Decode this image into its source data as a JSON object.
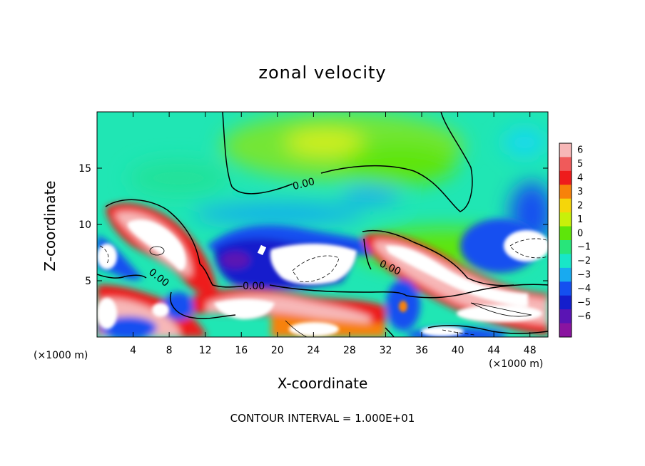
{
  "chart_data": {
    "type": "heatmap",
    "title": "zonal velocity",
    "xlabel": "X-coordinate",
    "ylabel": "Z-coordinate",
    "x_unit_note": "(×1000 m)",
    "x_unit_note_right": "(×1000 m)",
    "footnote": "CONTOUR INTERVAL = 1.000E+01",
    "xlim": [
      0,
      50
    ],
    "ylim": [
      0,
      20
    ],
    "x_ticks": [
      4,
      8,
      12,
      16,
      20,
      24,
      28,
      32,
      36,
      40,
      44,
      48
    ],
    "y_ticks": [
      5,
      10,
      15
    ],
    "colorbar": {
      "ticks": [
        6,
        5,
        4,
        3,
        2,
        1,
        0,
        -1,
        -2,
        -3,
        -4,
        -5,
        -6
      ],
      "colors": [
        "#f7b7b7",
        "#f05a5a",
        "#ee1c1c",
        "#f7820a",
        "#f5d60a",
        "#c8f00a",
        "#5ee50a",
        "#28e57a",
        "#18e6c8",
        "#18aaf0",
        "#1450f0",
        "#141ecc",
        "#5a14b4",
        "#8a14a0"
      ]
    },
    "contour_labels": [
      "0.00",
      "0.00",
      "0.00",
      "0.00"
    ],
    "contour_interval": 10.0
  }
}
